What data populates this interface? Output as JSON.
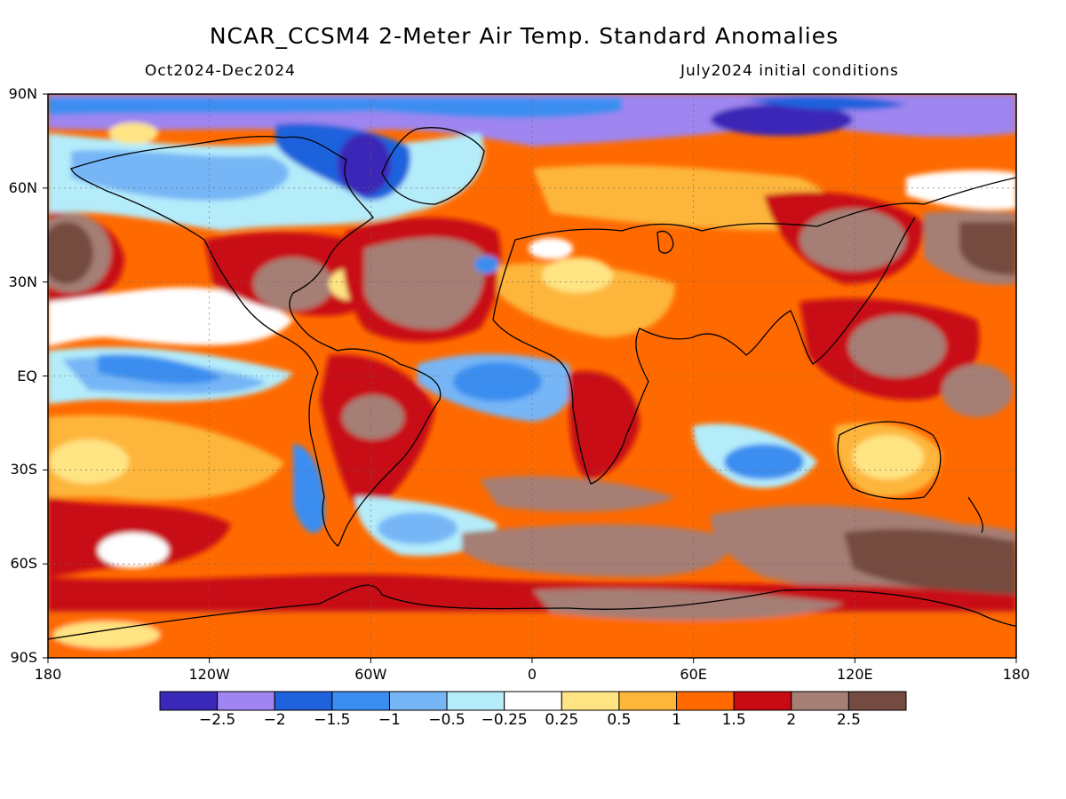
{
  "title": "NCAR_CCSM4 2-Meter Air Temp. Standard Anomalies",
  "period": "Oct2024-Dec2024",
  "initial_conditions": "July2024 initial conditions",
  "lat_labels": [
    "90N",
    "60N",
    "30N",
    "EQ",
    "30S",
    "60S",
    "90S"
  ],
  "lon_labels": [
    "180",
    "120W",
    "60W",
    "0",
    "60E",
    "120E",
    "180"
  ],
  "colorbar": {
    "colors": [
      "#3a28b8",
      "#9e85f0",
      "#1f62dc",
      "#3b8ef0",
      "#76b6f6",
      "#b4ecfa",
      "#ffffff",
      "#ffe483",
      "#fdb63a",
      "#ff6a00",
      "#c80a12",
      "#a57e74",
      "#744b41"
    ],
    "labels": [
      "-2.5",
      "-2",
      "-1.5",
      "-1",
      "-0.5",
      "-0.25",
      "0.25",
      "0.5",
      "1",
      "1.5",
      "2",
      "2.5"
    ]
  },
  "colors": {
    "base": "#ff6a00",
    "strong_positive": "#c80a12",
    "extreme_positive": "#a57e74",
    "max_positive": "#744b41",
    "weak_positive": "#fdb63a",
    "near_zero_positive": "#ffe483",
    "neutral": "#ffffff",
    "weak_negative": "#b4ecfa",
    "moderate_negative": "#76b6f6",
    "negative": "#3b8ef0",
    "strong_negative": "#1f62dc",
    "arctic_negative": "#9e85f0",
    "extreme_negative": "#3a28b8"
  }
}
